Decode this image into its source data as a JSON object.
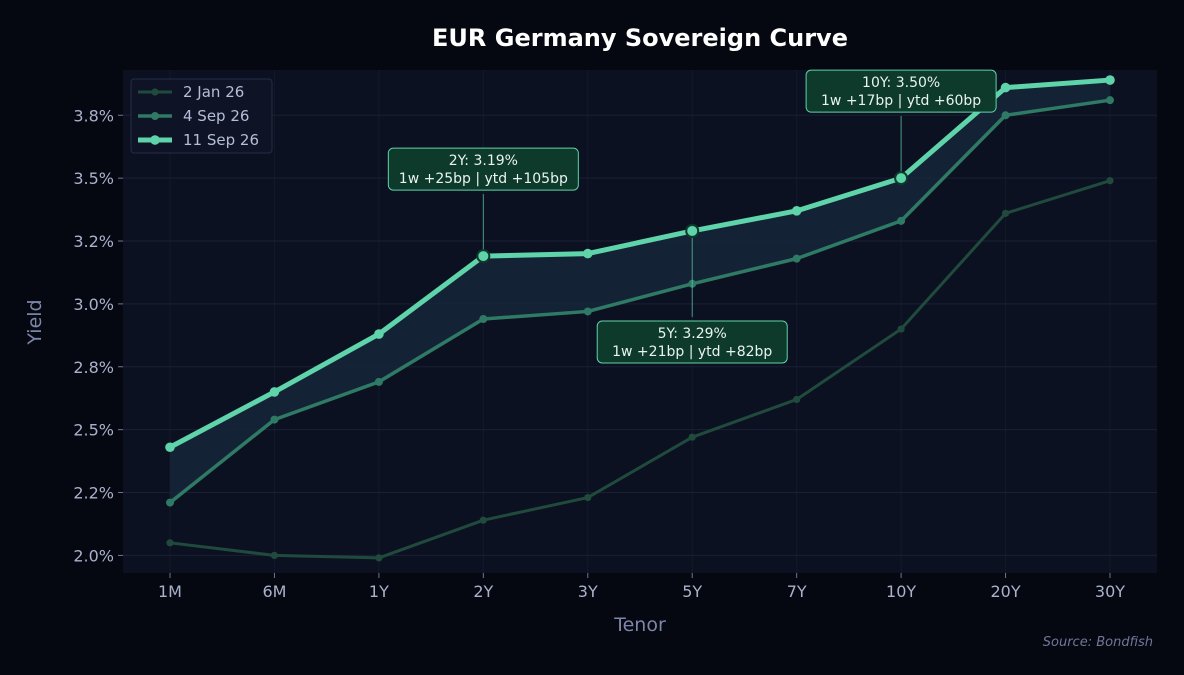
{
  "chart_data": {
    "type": "line",
    "title": "EUR Germany Sovereign Curve",
    "xlabel": "Tenor",
    "ylabel": "Yield",
    "categories": [
      "1M",
      "6M",
      "1Y",
      "2Y",
      "3Y",
      "5Y",
      "7Y",
      "10Y",
      "20Y",
      "30Y"
    ],
    "ylim": [
      1.93,
      3.93
    ],
    "yticks": [
      2.0,
      2.25,
      2.5,
      2.75,
      3.0,
      3.25,
      3.5,
      3.75
    ],
    "ytick_labels": [
      "2.0%",
      "2.2%",
      "2.5%",
      "2.8%",
      "3.0%",
      "3.2%",
      "3.5%",
      "3.8%"
    ],
    "grid": true,
    "legend_position": "top-left",
    "series": [
      {
        "name": "2 Jan 26",
        "color": "#1f4a3c",
        "values": [
          2.05,
          2.0,
          1.99,
          2.14,
          2.23,
          2.47,
          2.62,
          2.9,
          3.36,
          3.49
        ]
      },
      {
        "name": "4 Sep 26",
        "color": "#2f7a64",
        "values": [
          2.21,
          2.54,
          2.69,
          2.94,
          2.97,
          3.08,
          3.18,
          3.33,
          3.75,
          3.81
        ]
      },
      {
        "name": "11 Sep 26",
        "color": "#5fd3a9",
        "values": [
          2.43,
          2.65,
          2.88,
          3.19,
          3.2,
          3.29,
          3.37,
          3.5,
          3.86,
          3.89
        ]
      }
    ],
    "annotations": [
      {
        "category": "2Y",
        "series": "11 Sep 26",
        "placement": "above",
        "line1": "2Y: 3.19%",
        "line2": "1w +25bp | ytd +105bp"
      },
      {
        "category": "5Y",
        "series": "11 Sep 26",
        "placement": "below",
        "line1": "5Y: 3.29%",
        "line2": "1w +21bp | ytd +82bp"
      },
      {
        "category": "10Y",
        "series": "11 Sep 26",
        "placement": "above",
        "line1": "10Y: 3.50%",
        "line2": "1w +17bp | ytd +60bp"
      }
    ],
    "source": "Source: Bondfish"
  },
  "colors": {
    "page_bg": "#050810",
    "plot_bg": "#0c1122",
    "grid": "#1a2034",
    "band_fill": "#16263a",
    "annot_bg": "#0d3a2a",
    "annot_border": "#5fd3a9"
  }
}
